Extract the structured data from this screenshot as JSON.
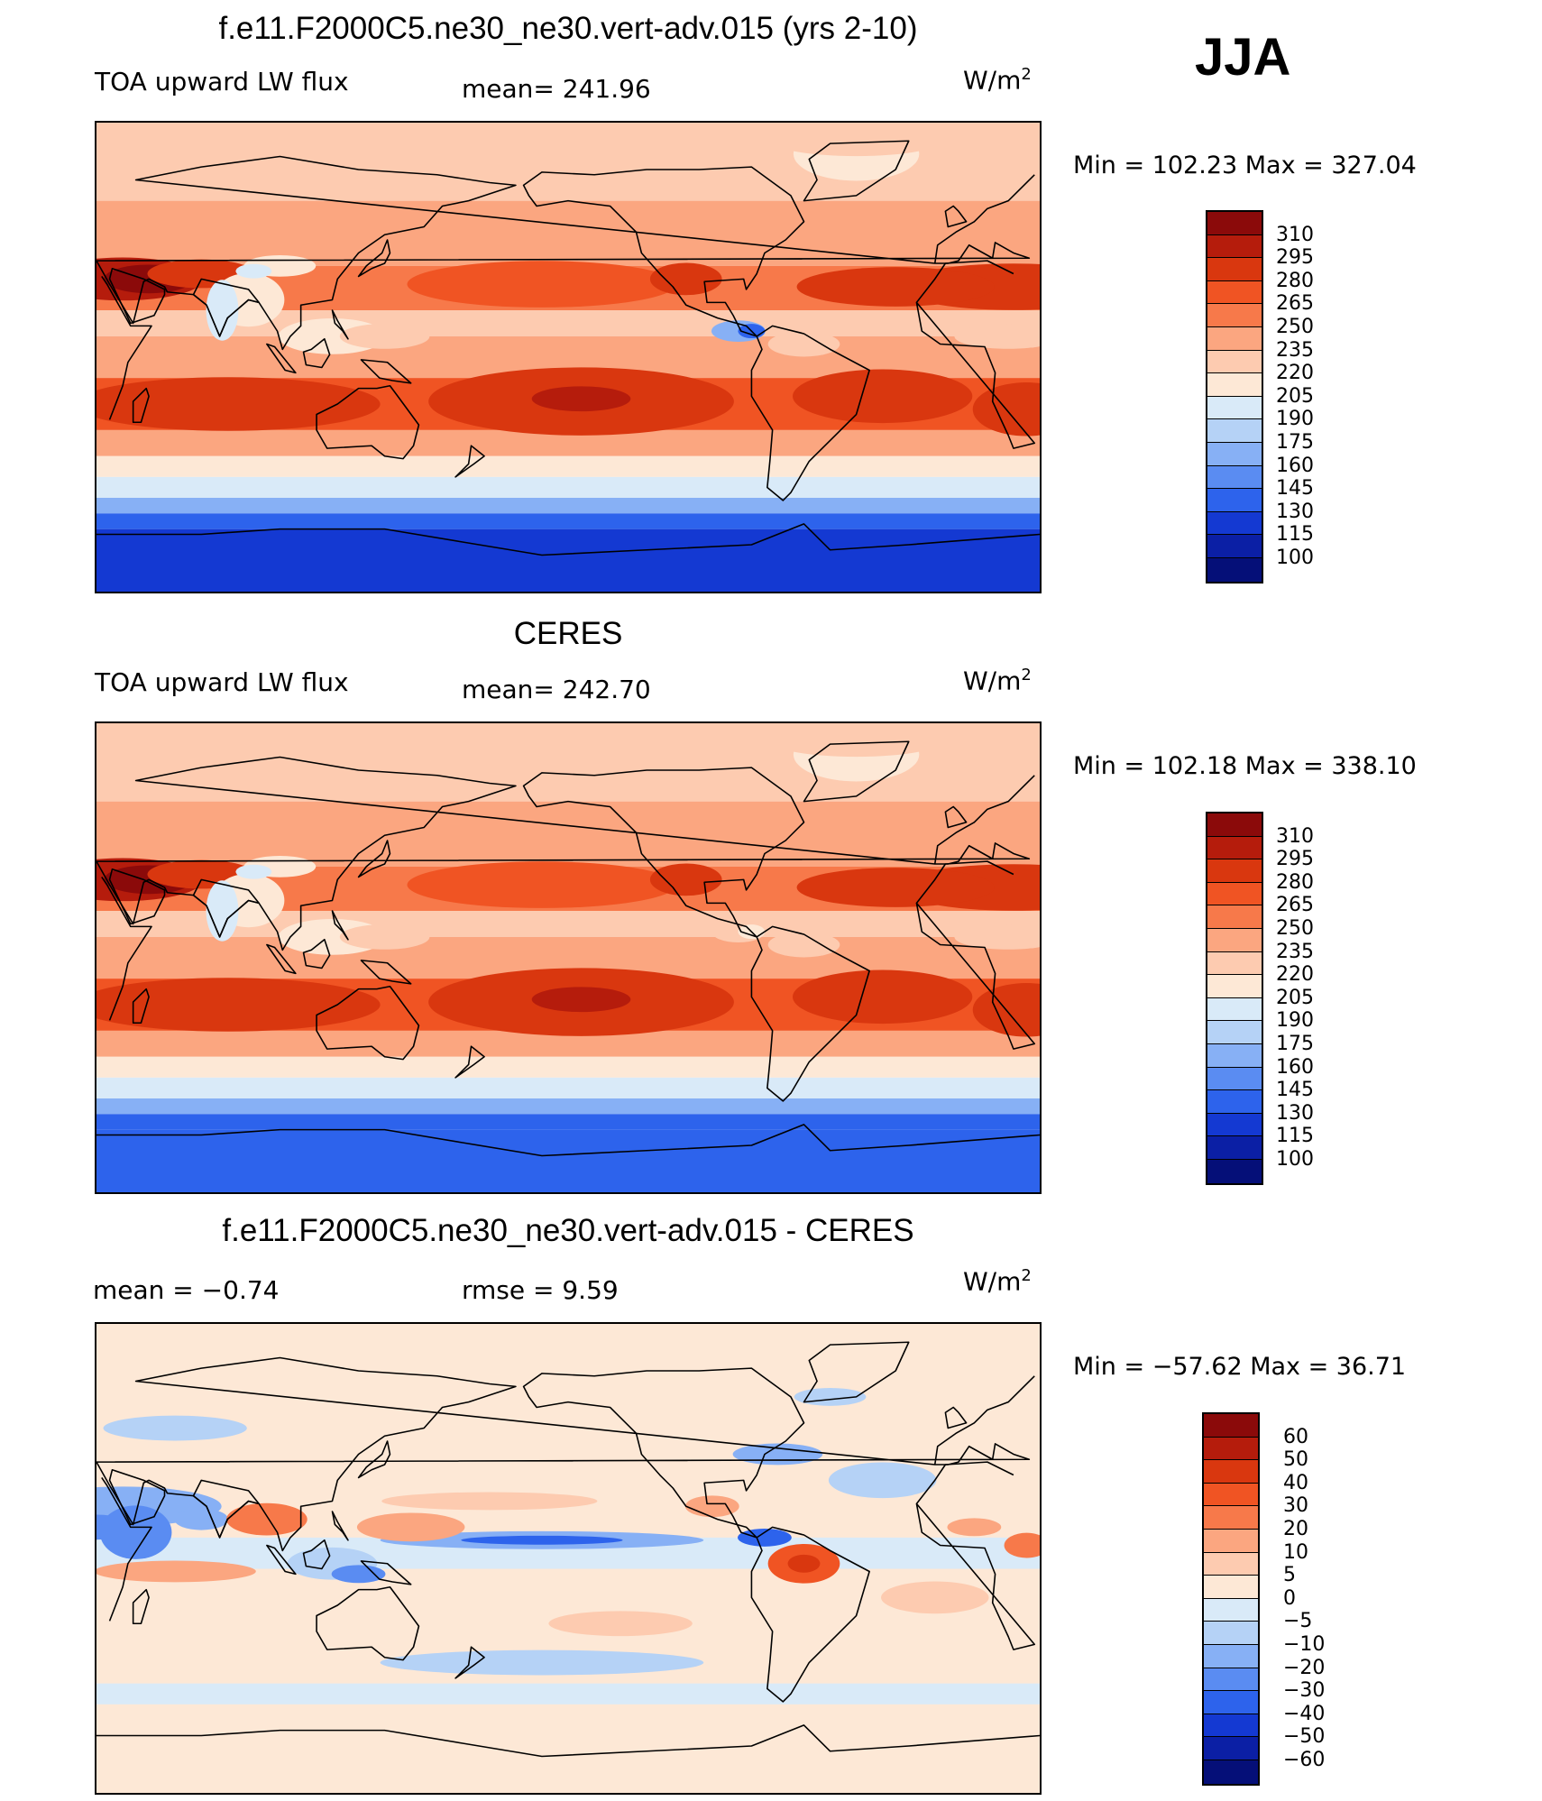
{
  "season": "JJA",
  "panels": [
    {
      "title": "f.e11.F2000C5.ne30_ne30.vert-adv.015 (yrs 2-10)",
      "left_label": "TOA upward LW flux",
      "center_label": "mean= 241.96",
      "unit_base": "W/m",
      "unit_exp": "2",
      "minmax": "Min  =  102.23  Max  =  327.04",
      "colorbar_labels": [
        "310",
        "295",
        "280",
        "265",
        "250",
        "235",
        "220",
        "205",
        "190",
        "175",
        "160",
        "145",
        "130",
        "115",
        "100"
      ],
      "colorbar_colors": [
        "#8b0a0a",
        "#b51c0c",
        "#d9370f",
        "#f05423",
        "#f7794a",
        "#fba680",
        "#fdcbb0",
        "#fde8d6",
        "#d9eaf8",
        "#b5d2f6",
        "#87b0f5",
        "#5a8cf2",
        "#2d63ec",
        "#1439d2",
        "#0b1fa5",
        "#050f78"
      ],
      "map_type": "model"
    },
    {
      "title": "CERES",
      "left_label": "TOA upward LW flux",
      "center_label": "mean= 242.70",
      "unit_base": "W/m",
      "unit_exp": "2",
      "minmax": "Min  =  102.18  Max  =  338.10",
      "colorbar_labels": [
        "310",
        "295",
        "280",
        "265",
        "250",
        "235",
        "220",
        "205",
        "190",
        "175",
        "160",
        "145",
        "130",
        "115",
        "100"
      ],
      "colorbar_colors": [
        "#8b0a0a",
        "#b51c0c",
        "#d9370f",
        "#f05423",
        "#f7794a",
        "#fba680",
        "#fdcbb0",
        "#fde8d6",
        "#d9eaf8",
        "#b5d2f6",
        "#87b0f5",
        "#5a8cf2",
        "#2d63ec",
        "#1439d2",
        "#0b1fa5",
        "#050f78"
      ],
      "map_type": "obs"
    },
    {
      "title": "f.e11.F2000C5.ne30_ne30.vert-adv.015 - CERES",
      "left_label": "mean =   −0.74",
      "center_label": "rmse =    9.59",
      "unit_base": "W/m",
      "unit_exp": "2",
      "minmax": "Min  =  −57.62  Max  =    36.71",
      "colorbar_labels": [
        "60",
        "50",
        "40",
        "30",
        "20",
        "10",
        "5",
        "0",
        "−5",
        "−10",
        "−20",
        "−30",
        "−40",
        "−50",
        "−60"
      ],
      "colorbar_colors": [
        "#8b0a0a",
        "#b51c0c",
        "#d9370f",
        "#f05423",
        "#f7794a",
        "#fba680",
        "#fdcbb0",
        "#fde8d6",
        "#d9eaf8",
        "#b5d2f6",
        "#87b0f5",
        "#5a8cf2",
        "#2d63ec",
        "#1439d2",
        "#0b1fa5",
        "#050f78"
      ],
      "map_type": "diff"
    }
  ]
}
